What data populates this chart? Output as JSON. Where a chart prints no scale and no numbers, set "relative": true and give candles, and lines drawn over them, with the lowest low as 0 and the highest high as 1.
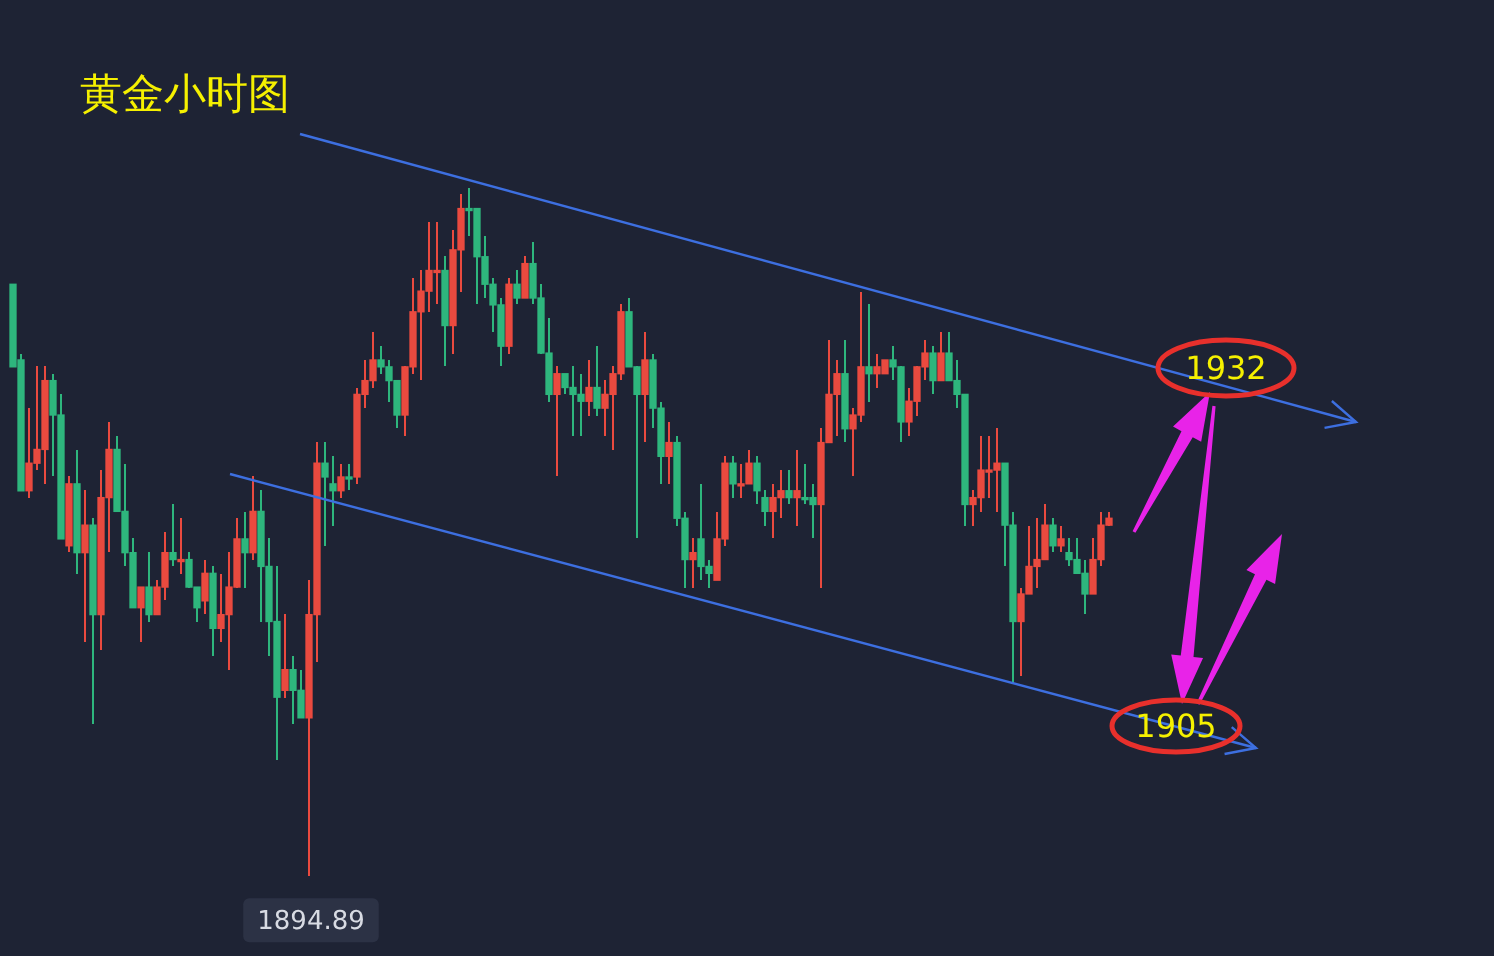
{
  "chart_data": {
    "type": "candlestick",
    "title": "黄金小时图",
    "relative": true,
    "annotations": [
      "1932",
      "1905",
      "1894.89"
    ],
    "categories": [
      null,
      null,
      null,
      null,
      null,
      null,
      null,
      null,
      null,
      null,
      null,
      null,
      null,
      null,
      null,
      null,
      null,
      null,
      null,
      null,
      null,
      null,
      null,
      null,
      null,
      null,
      null,
      null,
      null,
      null,
      null,
      null,
      null,
      null,
      null,
      null,
      null,
      null,
      null,
      null,
      null,
      null,
      null,
      null,
      null,
      null,
      null,
      null,
      null,
      null,
      null,
      null,
      null,
      null,
      null,
      null,
      null,
      null,
      null,
      null,
      null,
      null,
      null,
      null,
      null,
      null,
      null,
      null,
      null,
      null,
      null,
      null,
      null,
      null,
      null,
      null,
      null,
      null,
      null,
      null,
      null,
      null,
      null,
      null,
      null,
      null,
      null,
      null,
      null,
      null,
      null,
      null,
      null,
      null,
      null,
      null,
      null,
      null,
      null,
      null,
      null,
      null,
      null,
      null,
      null,
      null,
      null,
      null,
      null,
      null,
      null,
      null,
      null,
      null,
      null,
      null,
      null,
      null,
      null,
      null,
      null,
      null,
      null,
      null,
      null,
      null,
      null,
      null,
      null,
      null,
      null,
      null,
      null,
      null,
      null,
      null,
      null,
      null
    ],
    "ohlc": [
      [
        0.86,
        0.86,
        0.74,
        0.74
      ],
      [
        0.75,
        0.76,
        0.56,
        0.56
      ],
      [
        0.56,
        0.68,
        0.55,
        0.6
      ],
      [
        0.6,
        0.74,
        0.59,
        0.62
      ],
      [
        0.62,
        0.74,
        0.57,
        0.72
      ],
      [
        0.72,
        0.73,
        0.58,
        0.67
      ],
      [
        0.67,
        0.7,
        0.49,
        0.49
      ],
      [
        0.48,
        0.58,
        0.47,
        0.57
      ],
      [
        0.57,
        0.62,
        0.44,
        0.47
      ],
      [
        0.47,
        0.56,
        0.34,
        0.51
      ],
      [
        0.51,
        0.52,
        0.22,
        0.38
      ],
      [
        0.38,
        0.59,
        0.33,
        0.55
      ],
      [
        0.55,
        0.66,
        0.47,
        0.62
      ],
      [
        0.62,
        0.64,
        0.53,
        0.53
      ],
      [
        0.53,
        0.6,
        0.45,
        0.47
      ],
      [
        0.47,
        0.49,
        0.39,
        0.39
      ],
      [
        0.39,
        0.42,
        0.34,
        0.42
      ],
      [
        0.42,
        0.47,
        0.37,
        0.38
      ],
      [
        0.38,
        0.43,
        0.38,
        0.42
      ],
      [
        0.42,
        0.5,
        0.4,
        0.47
      ],
      [
        0.47,
        0.54,
        0.45,
        0.46
      ],
      [
        0.46,
        0.52,
        0.44,
        0.46
      ],
      [
        0.46,
        0.47,
        0.42,
        0.42
      ],
      [
        0.42,
        0.42,
        0.37,
        0.39
      ],
      [
        0.4,
        0.46,
        0.38,
        0.44
      ],
      [
        0.44,
        0.45,
        0.32,
        0.36
      ],
      [
        0.36,
        0.44,
        0.34,
        0.38
      ],
      [
        0.38,
        0.47,
        0.3,
        0.42
      ],
      [
        0.42,
        0.52,
        0.42,
        0.49
      ],
      [
        0.49,
        0.53,
        0.42,
        0.47
      ],
      [
        0.47,
        0.58,
        0.46,
        0.53
      ],
      [
        0.53,
        0.56,
        0.37,
        0.45
      ],
      [
        0.45,
        0.49,
        0.32,
        0.37
      ],
      [
        0.37,
        0.45,
        0.17,
        0.26
      ],
      [
        0.27,
        0.38,
        0.26,
        0.3
      ],
      [
        0.3,
        0.32,
        0.22,
        0.27
      ],
      [
        0.27,
        0.3,
        0.23,
        0.23
      ],
      [
        0.23,
        0.43,
        0,
        0.38
      ],
      [
        0.38,
        0.63,
        0.31,
        0.6
      ],
      [
        0.6,
        0.63,
        0.48,
        0.58
      ],
      [
        0.57,
        0.61,
        0.51,
        0.56
      ],
      [
        0.56,
        0.6,
        0.55,
        0.58
      ],
      [
        0.58,
        0.6,
        0.56,
        0.58
      ],
      [
        0.58,
        0.71,
        0.57,
        0.7
      ],
      [
        0.7,
        0.75,
        0.68,
        0.72
      ],
      [
        0.72,
        0.79,
        0.71,
        0.75
      ],
      [
        0.75,
        0.77,
        0.73,
        0.74
      ],
      [
        0.74,
        0.75,
        0.69,
        0.72
      ],
      [
        0.72,
        0.72,
        0.65,
        0.67
      ],
      [
        0.67,
        0.74,
        0.64,
        0.74
      ],
      [
        0.74,
        0.87,
        0.73,
        0.82
      ],
      [
        0.82,
        0.88,
        0.72,
        0.85
      ],
      [
        0.85,
        0.95,
        0.82,
        0.88
      ],
      [
        0.88,
        0.95,
        0.83,
        0.88
      ],
      [
        0.88,
        0.9,
        0.74,
        0.8
      ],
      [
        0.8,
        0.94,
        0.76,
        0.91
      ],
      [
        0.91,
        0.99,
        0.85,
        0.97
      ],
      [
        0.97,
        1,
        0.93,
        0.97
      ],
      [
        0.97,
        0.97,
        0.83,
        0.9
      ],
      [
        0.9,
        0.93,
        0.84,
        0.86
      ],
      [
        0.86,
        0.87,
        0.79,
        0.83
      ],
      [
        0.83,
        0.84,
        0.74,
        0.77
      ],
      [
        0.77,
        0.87,
        0.76,
        0.86
      ],
      [
        0.86,
        0.88,
        0.83,
        0.84
      ],
      [
        0.84,
        0.9,
        0.84,
        0.89
      ],
      [
        0.89,
        0.92,
        0.83,
        0.84
      ],
      [
        0.84,
        0.86,
        0.76,
        0.76
      ],
      [
        0.76,
        0.81,
        0.69,
        0.7
      ],
      [
        0.7,
        0.74,
        0.58,
        0.73
      ],
      [
        0.73,
        0.73,
        0.7,
        0.71
      ],
      [
        0.71,
        0.74,
        0.64,
        0.7
      ],
      [
        0.7,
        0.73,
        0.64,
        0.69
      ],
      [
        0.69,
        0.75,
        0.67,
        0.71
      ],
      [
        0.71,
        0.77,
        0.67,
        0.68
      ],
      [
        0.68,
        0.72,
        0.64,
        0.7
      ],
      [
        0.7,
        0.74,
        0.62,
        0.73
      ],
      [
        0.73,
        0.83,
        0.72,
        0.82
      ],
      [
        0.82,
        0.84,
        0.74,
        0.74
      ],
      [
        0.74,
        0.74,
        0.49,
        0.7
      ],
      [
        0.7,
        0.79,
        0.63,
        0.75
      ],
      [
        0.75,
        0.76,
        0.65,
        0.68
      ],
      [
        0.68,
        0.69,
        0.57,
        0.61
      ],
      [
        0.61,
        0.66,
        0.57,
        0.63
      ],
      [
        0.63,
        0.64,
        0.51,
        0.52
      ],
      [
        0.52,
        0.53,
        0.42,
        0.46
      ],
      [
        0.46,
        0.49,
        0.42,
        0.47
      ],
      [
        0.49,
        0.57,
        0.43,
        0.45
      ],
      [
        0.45,
        0.46,
        0.42,
        0.44
      ],
      [
        0.43,
        0.53,
        0.43,
        0.49
      ],
      [
        0.49,
        0.61,
        0.48,
        0.6
      ],
      [
        0.6,
        0.61,
        0.55,
        0.57
      ],
      [
        0.57,
        0.6,
        0.55,
        0.57
      ],
      [
        0.57,
        0.62,
        0.57,
        0.6
      ],
      [
        0.6,
        0.61,
        0.54,
        0.56
      ],
      [
        0.55,
        0.56,
        0.51,
        0.53
      ],
      [
        0.53,
        0.57,
        0.49,
        0.55
      ],
      [
        0.55,
        0.59,
        0.52,
        0.56
      ],
      [
        0.56,
        0.59,
        0.54,
        0.55
      ],
      [
        0.55,
        0.62,
        0.51,
        0.56
      ],
      [
        0.55,
        0.6,
        0.54,
        0.55
      ],
      [
        0.55,
        0.57,
        0.49,
        0.54
      ],
      [
        0.54,
        0.65,
        0.42,
        0.63
      ],
      [
        0.63,
        0.78,
        0.63,
        0.7
      ],
      [
        0.7,
        0.75,
        0.64,
        0.73
      ],
      [
        0.73,
        0.78,
        0.63,
        0.65
      ],
      [
        0.65,
        0.68,
        0.58,
        0.67
      ],
      [
        0.67,
        0.85,
        0.66,
        0.74
      ],
      [
        0.74,
        0.83,
        0.69,
        0.73
      ],
      [
        0.73,
        0.76,
        0.71,
        0.74
      ],
      [
        0.73,
        0.75,
        0.73,
        0.75
      ],
      [
        0.75,
        0.77,
        0.72,
        0.74
      ],
      [
        0.74,
        0.74,
        0.63,
        0.66
      ],
      [
        0.66,
        0.71,
        0.64,
        0.69
      ],
      [
        0.69,
        0.74,
        0.67,
        0.74
      ],
      [
        0.74,
        0.78,
        0.72,
        0.76
      ],
      [
        0.76,
        0.77,
        0.7,
        0.72
      ],
      [
        0.72,
        0.79,
        0.72,
        0.76
      ],
      [
        0.76,
        0.79,
        0.72,
        0.72
      ],
      [
        0.72,
        0.75,
        0.68,
        0.7
      ],
      [
        0.7,
        0.7,
        0.51,
        0.54
      ],
      [
        0.54,
        0.56,
        0.51,
        0.55
      ],
      [
        0.55,
        0.64,
        0.53,
        0.59
      ],
      [
        0.59,
        0.64,
        0.55,
        0.59
      ],
      [
        0.59,
        0.65,
        0.53,
        0.6
      ],
      [
        0.6,
        0.6,
        0.45,
        0.51
      ],
      [
        0.51,
        0.53,
        0.28,
        0.37
      ],
      [
        0.37,
        0.42,
        0.29,
        0.41
      ],
      [
        0.41,
        0.51,
        0.41,
        0.45
      ],
      [
        0.45,
        0.52,
        0.42,
        0.46
      ],
      [
        0.46,
        0.54,
        0.46,
        0.51
      ],
      [
        0.51,
        0.52,
        0.47,
        0.48
      ],
      [
        0.48,
        0.51,
        0.47,
        0.49
      ],
      [
        0.47,
        0.49,
        0.45,
        0.46
      ],
      [
        0.46,
        0.49,
        0.44,
        0.44
      ],
      [
        0.44,
        0.46,
        0.38,
        0.41
      ],
      [
        0.41,
        0.49,
        0.41,
        0.46
      ],
      [
        0.46,
        0.53,
        0.45,
        0.51
      ],
      [
        0.51,
        0.53,
        0.51,
        0.52
      ]
    ],
    "colors": [
      "#2eb67d",
      "#2eb67d",
      "#ea4a3f",
      "#ea4a3f",
      "#ea4a3f",
      "#2eb67d",
      "#2eb67d",
      "#ea4a3f",
      "#2eb67d",
      "#ea4a3f",
      "#2eb67d",
      "#ea4a3f",
      "#ea4a3f",
      "#2eb67d",
      "#2eb67d",
      "#2eb67d",
      "#ea4a3f",
      "#2eb67d",
      "#ea4a3f",
      "#ea4a3f",
      "#2eb67d",
      "#ea4a3f",
      "#2eb67d",
      "#2eb67d",
      "#ea4a3f",
      "#2eb67d",
      "#ea4a3f",
      "#ea4a3f",
      "#ea4a3f",
      "#2eb67d",
      "#ea4a3f",
      "#2eb67d",
      "#2eb67d",
      "#2eb67d",
      "#ea4a3f",
      "#2eb67d",
      "#2eb67d",
      "#ea4a3f",
      "#ea4a3f",
      "#2eb67d",
      "#2eb67d",
      "#ea4a3f",
      "#2eb67d",
      "#ea4a3f",
      "#ea4a3f",
      "#ea4a3f",
      "#2eb67d",
      "#2eb67d",
      "#2eb67d",
      "#ea4a3f",
      "#ea4a3f",
      "#ea4a3f",
      "#ea4a3f",
      "#ea4a3f",
      "#2eb67d",
      "#ea4a3f",
      "#ea4a3f",
      "#2eb67d",
      "#2eb67d",
      "#2eb67d",
      "#2eb67d",
      "#2eb67d",
      "#ea4a3f",
      "#2eb67d",
      "#ea4a3f",
      "#2eb67d",
      "#2eb67d",
      "#2eb67d",
      "#ea4a3f",
      "#2eb67d",
      "#2eb67d",
      "#2eb67d",
      "#ea4a3f",
      "#2eb67d",
      "#ea4a3f",
      "#ea4a3f",
      "#ea4a3f",
      "#2eb67d",
      "#2eb67d",
      "#ea4a3f",
      "#2eb67d",
      "#2eb67d",
      "#ea4a3f",
      "#2eb67d",
      "#2eb67d",
      "#ea4a3f",
      "#2eb67d",
      "#2eb67d",
      "#ea4a3f",
      "#ea4a3f",
      "#2eb67d",
      "#ea4a3f",
      "#ea4a3f",
      "#2eb67d",
      "#2eb67d",
      "#ea4a3f",
      "#ea4a3f",
      "#2eb67d",
      "#ea4a3f",
      "#2eb67d",
      "#2eb67d",
      "#ea4a3f",
      "#ea4a3f",
      "#ea4a3f",
      "#2eb67d",
      "#ea4a3f",
      "#ea4a3f",
      "#2eb67d",
      "#ea4a3f",
      "#ea4a3f",
      "#2eb67d",
      "#2eb67d",
      "#ea4a3f",
      "#ea4a3f",
      "#ea4a3f",
      "#2eb67d",
      "#ea4a3f",
      "#2eb67d",
      "#2eb67d",
      "#2eb67d",
      "#ea4a3f",
      "#ea4a3f",
      "#ea4a3f",
      "#ea4a3f",
      "#2eb67d",
      "#2eb67d",
      "#ea4a3f",
      "#ea4a3f",
      "#ea4a3f",
      "#ea4a3f",
      "#2eb67d",
      "#ea4a3f",
      "#2eb67d",
      "#2eb67d",
      "#2eb67d",
      "#ea4a3f",
      "#ea4a3f",
      "#ea4a3f"
    ]
  }
}
